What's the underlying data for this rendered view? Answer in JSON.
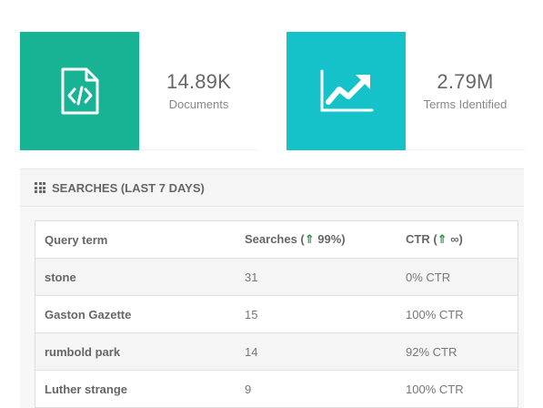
{
  "stats": {
    "documents": {
      "value": "14.89K",
      "label": "Documents",
      "icon": "file-code-icon",
      "color": "#18b394"
    },
    "terms": {
      "value": "2.79M",
      "label": "Terms Identified",
      "icon": "trend-chart-icon",
      "color": "#15c2c9"
    }
  },
  "searches": {
    "title": "SEARCHES (LAST 7 DAYS)",
    "columns": {
      "query": "Query term",
      "searches": {
        "prefix": "Searches (",
        "arrow": "⇑",
        "suffix": " 99%)"
      },
      "ctr": {
        "prefix": "CTR (",
        "arrow": "⇑",
        "suffix": " ∞)"
      }
    },
    "rows": [
      {
        "term": "stone",
        "searches": "31",
        "ctr": "0% CTR"
      },
      {
        "term": "Gaston Gazette",
        "searches": "15",
        "ctr": "100% CTR"
      },
      {
        "term": "rumbold park",
        "searches": "14",
        "ctr": "92% CTR"
      },
      {
        "term": "Luther strange",
        "searches": "9",
        "ctr": "100% CTR"
      }
    ]
  }
}
